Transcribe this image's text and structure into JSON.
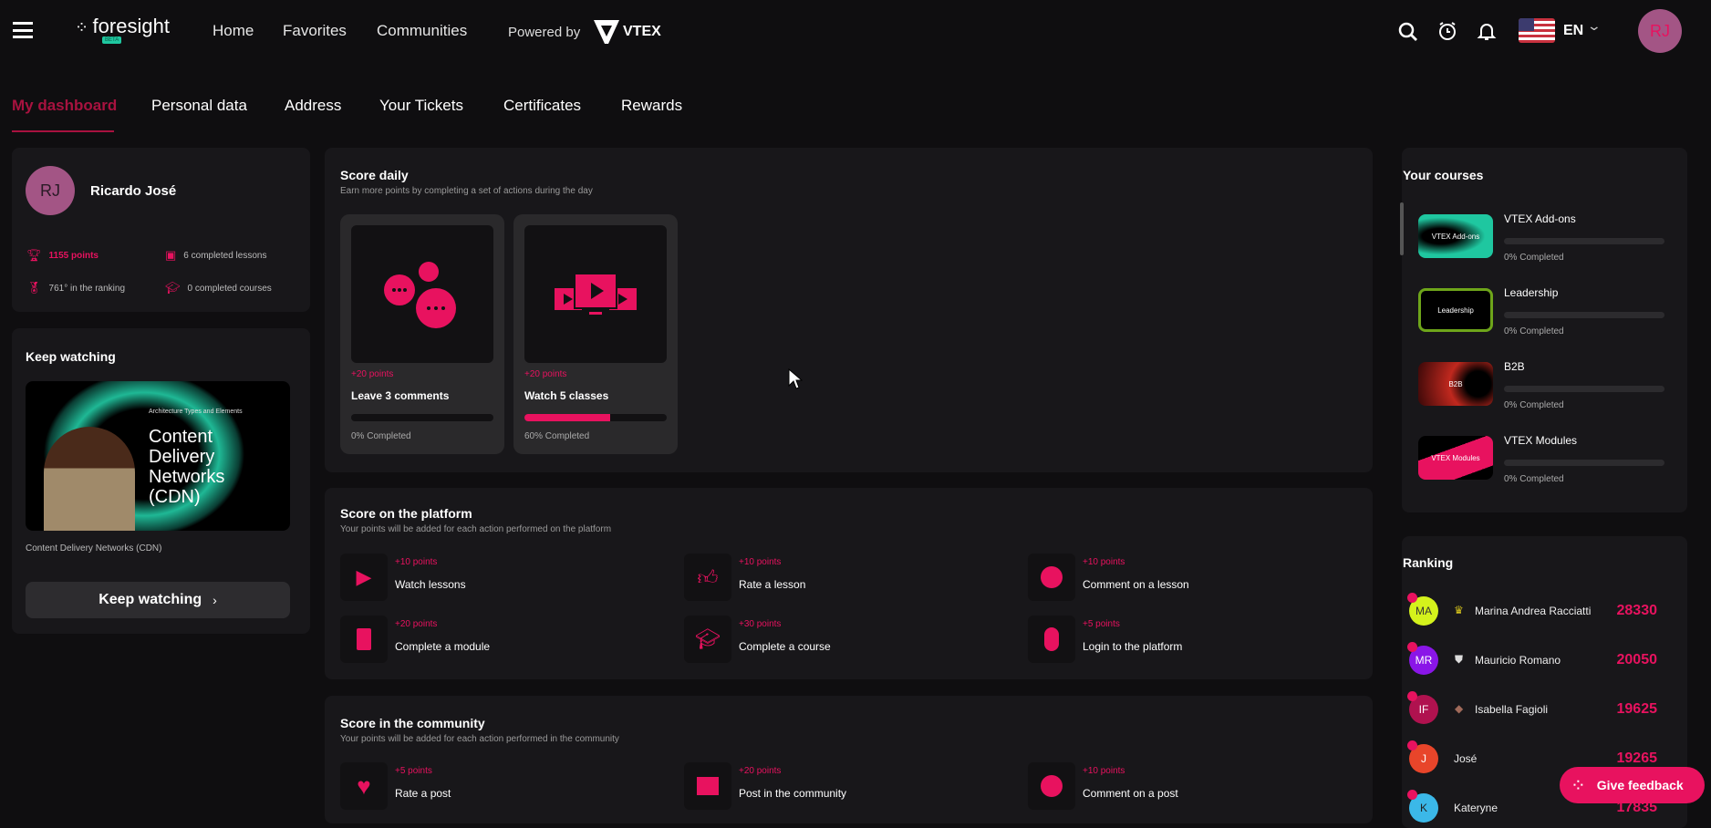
{
  "header": {
    "logo": "foresight",
    "beta": "BETA",
    "nav": [
      "Home",
      "Favorites",
      "Communities"
    ],
    "powered_by": "Powered by",
    "vtex": "VTEX",
    "language": "EN",
    "avatar": "RJ",
    "icons": [
      "menu-icon",
      "search-icon",
      "alarm-icon",
      "bell-icon",
      "us-flag-icon",
      "chevron-down-icon"
    ]
  },
  "tabs": [
    {
      "label": "My dashboard",
      "active": true
    },
    {
      "label": "Personal data"
    },
    {
      "label": "Address"
    },
    {
      "label": "Your Tickets"
    },
    {
      "label": "Certificates"
    },
    {
      "label": "Rewards"
    }
  ],
  "profile": {
    "initials": "RJ",
    "name": "Ricardo José",
    "points": "1155 points",
    "lessons": "6 completed lessons",
    "ranking": "761° in the ranking",
    "courses": "0 completed courses"
  },
  "keep_watching": {
    "title": "Keep watching",
    "thumb_kicker": "Architecture Types and Elements",
    "thumb_title": "Content Delivery Networks (CDN)",
    "video_title": "Content Delivery Networks (CDN)",
    "button": "Keep watching"
  },
  "score_daily": {
    "title": "Score daily",
    "subtitle": "Earn more points by completing a set of actions during the day",
    "cards": [
      {
        "points": "+20 points",
        "label": "Leave 3 comments",
        "progress": 0,
        "status": "0% Completed"
      },
      {
        "points": "+20 points",
        "label": "Watch 5 classes",
        "progress": 60,
        "status": "60% Completed"
      }
    ]
  },
  "score_platform": {
    "title": "Score on the platform",
    "subtitle": "Your points will be added for each action performed on the platform",
    "actions": [
      {
        "points": "+10 points",
        "label": "Watch lessons",
        "icon": "monitor-play-icon"
      },
      {
        "points": "+10 points",
        "label": "Rate a lesson",
        "icon": "thumbs-up-icon"
      },
      {
        "points": "+10 points",
        "label": "Comment on a lesson",
        "icon": "comment-icon"
      },
      {
        "points": "+20 points",
        "label": "Complete a module",
        "icon": "book-icon"
      },
      {
        "points": "+30 points",
        "label": "Complete a course",
        "icon": "graduate-icon"
      },
      {
        "points": "+5 points",
        "label": "Login to the platform",
        "icon": "mouse-icon"
      }
    ]
  },
  "score_community": {
    "title": "Score in the community",
    "subtitle": "Your points will be added for each action performed in the community",
    "actions": [
      {
        "points": "+5 points",
        "label": "Rate a post",
        "icon": "heart-icon"
      },
      {
        "points": "+20 points",
        "label": "Post in the community",
        "icon": "post-icon"
      },
      {
        "points": "+10 points",
        "label": "Comment on a post",
        "icon": "comment-icon"
      }
    ]
  },
  "courses": {
    "title": "Your courses",
    "items": [
      {
        "name": "VTEX Add-ons",
        "thumb": "VTEX Add-ons",
        "progress": 0,
        "status": "0% Completed"
      },
      {
        "name": "Leadership",
        "thumb": "Leadership",
        "progress": 0,
        "status": "0% Completed"
      },
      {
        "name": "B2B",
        "thumb": "B2B",
        "progress": 0,
        "status": "0% Completed"
      },
      {
        "name": "VTEX Modules",
        "thumb": "VTEX Modules",
        "progress": 0,
        "status": "0% Completed"
      }
    ]
  },
  "ranking": {
    "title": "Ranking",
    "items": [
      {
        "initials": "MA",
        "name": "Marina Andrea Racciatti",
        "score": "28330",
        "badge": "crown-icon",
        "color": "#d4f21c"
      },
      {
        "initials": "MR",
        "name": "Mauricio Romano",
        "score": "20050",
        "badge": "shield-icon",
        "color": "#8a16e8"
      },
      {
        "initials": "IF",
        "name": "Isabella Fagioli",
        "score": "19625",
        "badge": "diamond-icon",
        "color": "#b0124f"
      },
      {
        "initials": "J",
        "name": "José",
        "score": "19265",
        "color": "#e8452a"
      },
      {
        "initials": "K",
        "name": "Kateryne",
        "score": "17835",
        "color": "#3bb8e8"
      }
    ]
  },
  "feedback": {
    "label": "Give feedback"
  },
  "colors": {
    "accent": "#e8125f",
    "background": "#0f0e10",
    "card": "#18171a"
  }
}
